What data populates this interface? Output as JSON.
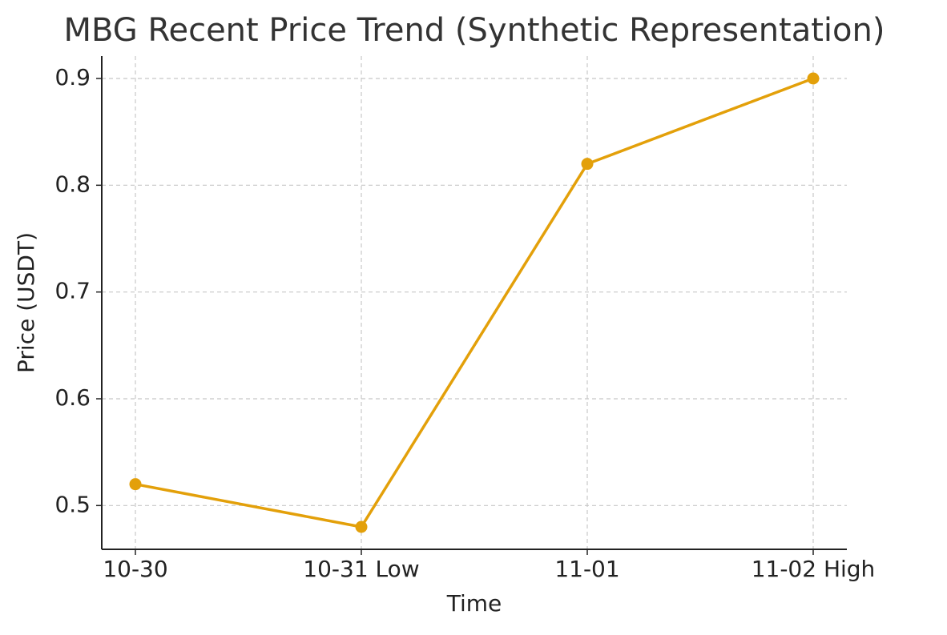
{
  "chart_data": {
    "type": "line",
    "title": "MBG Recent Price Trend (Synthetic Representation)",
    "x_label": "Time",
    "y_label": "Price (USDT)",
    "categories": [
      "10-30",
      "10-31 Low",
      "11-01",
      "11-02 High"
    ],
    "values": [
      0.52,
      0.48,
      0.82,
      0.9
    ],
    "color": "#e3a00a",
    "ylim": [
      0.459,
      0.921
    ],
    "yticks": [
      0.5,
      0.6,
      0.7,
      0.8,
      0.9
    ],
    "grid": true
  }
}
